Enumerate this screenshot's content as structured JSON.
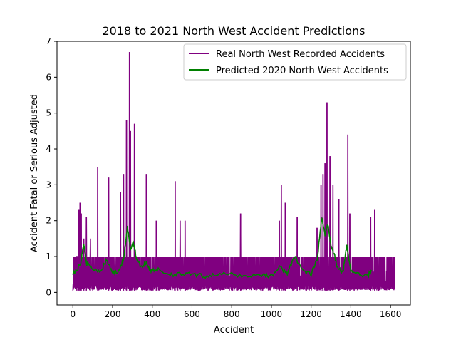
{
  "chart_data": {
    "type": "line",
    "title": "2018 to 2021 North West Accident Predictions",
    "xlabel": "Accident",
    "ylabel": "Accident Fatal or Serious Adjusted",
    "xlim": [
      -80,
      1700
    ],
    "ylim": [
      -0.35,
      7
    ],
    "xticks": [
      0,
      200,
      400,
      600,
      800,
      1000,
      1200,
      1400,
      1600
    ],
    "yticks": [
      0,
      1,
      2,
      3,
      4,
      5,
      6,
      7
    ],
    "legend": {
      "placement": "top-right"
    },
    "grid": false,
    "series": [
      {
        "name": "Real North West Recorded Accidents",
        "color": "#800080",
        "x_start": 0,
        "x_end": 1620,
        "count": 1620,
        "baseline": 0.05,
        "typical_high": 1.0,
        "spikes": [
          {
            "x": 20,
            "y": 1.0
          },
          {
            "x": 30,
            "y": 2.3
          },
          {
            "x": 36,
            "y": 2.5
          },
          {
            "x": 42,
            "y": 2.2
          },
          {
            "x": 55,
            "y": 1.5
          },
          {
            "x": 68,
            "y": 2.1
          },
          {
            "x": 88,
            "y": 1.5
          },
          {
            "x": 125,
            "y": 3.5
          },
          {
            "x": 180,
            "y": 3.2
          },
          {
            "x": 240,
            "y": 2.8
          },
          {
            "x": 255,
            "y": 3.3
          },
          {
            "x": 270,
            "y": 4.8
          },
          {
            "x": 285,
            "y": 6.7
          },
          {
            "x": 290,
            "y": 4.5
          },
          {
            "x": 310,
            "y": 4.7
          },
          {
            "x": 370,
            "y": 3.3
          },
          {
            "x": 420,
            "y": 2.0
          },
          {
            "x": 515,
            "y": 3.1
          },
          {
            "x": 540,
            "y": 2.0
          },
          {
            "x": 565,
            "y": 2.0
          },
          {
            "x": 845,
            "y": 2.2
          },
          {
            "x": 1040,
            "y": 2.0
          },
          {
            "x": 1050,
            "y": 3.0
          },
          {
            "x": 1070,
            "y": 2.5
          },
          {
            "x": 1130,
            "y": 2.1
          },
          {
            "x": 1230,
            "y": 1.8
          },
          {
            "x": 1250,
            "y": 3.0
          },
          {
            "x": 1260,
            "y": 3.3
          },
          {
            "x": 1270,
            "y": 3.6
          },
          {
            "x": 1280,
            "y": 5.3
          },
          {
            "x": 1295,
            "y": 3.8
          },
          {
            "x": 1310,
            "y": 3.0
          },
          {
            "x": 1340,
            "y": 2.6
          },
          {
            "x": 1385,
            "y": 4.4
          },
          {
            "x": 1395,
            "y": 2.2
          },
          {
            "x": 1500,
            "y": 2.1
          },
          {
            "x": 1520,
            "y": 2.3
          }
        ]
      },
      {
        "name": "Predicted 2020 North West Accidents",
        "color": "#008000",
        "x": [
          0,
          20,
          40,
          55,
          70,
          100,
          140,
          170,
          200,
          230,
          255,
          275,
          290,
          305,
          320,
          345,
          370,
          390,
          420,
          460,
          500,
          540,
          600,
          660,
          720,
          800,
          880,
          960,
          1000,
          1040,
          1080,
          1120,
          1160,
          1200,
          1230,
          1255,
          1270,
          1285,
          1300,
          1315,
          1330,
          1360,
          1380,
          1400,
          1440,
          1480,
          1505
        ],
        "y": [
          0.55,
          0.6,
          0.85,
          1.35,
          0.8,
          0.65,
          0.6,
          0.9,
          0.55,
          0.6,
          0.9,
          1.8,
          1.2,
          1.4,
          0.95,
          0.7,
          0.85,
          0.6,
          0.65,
          0.55,
          0.5,
          0.5,
          0.5,
          0.45,
          0.5,
          0.5,
          0.45,
          0.5,
          0.45,
          0.7,
          0.55,
          1.0,
          0.6,
          0.5,
          0.9,
          2.1,
          1.6,
          1.9,
          1.3,
          1.1,
          0.75,
          0.55,
          1.3,
          0.6,
          0.5,
          0.45,
          0.6
        ]
      }
    ]
  }
}
